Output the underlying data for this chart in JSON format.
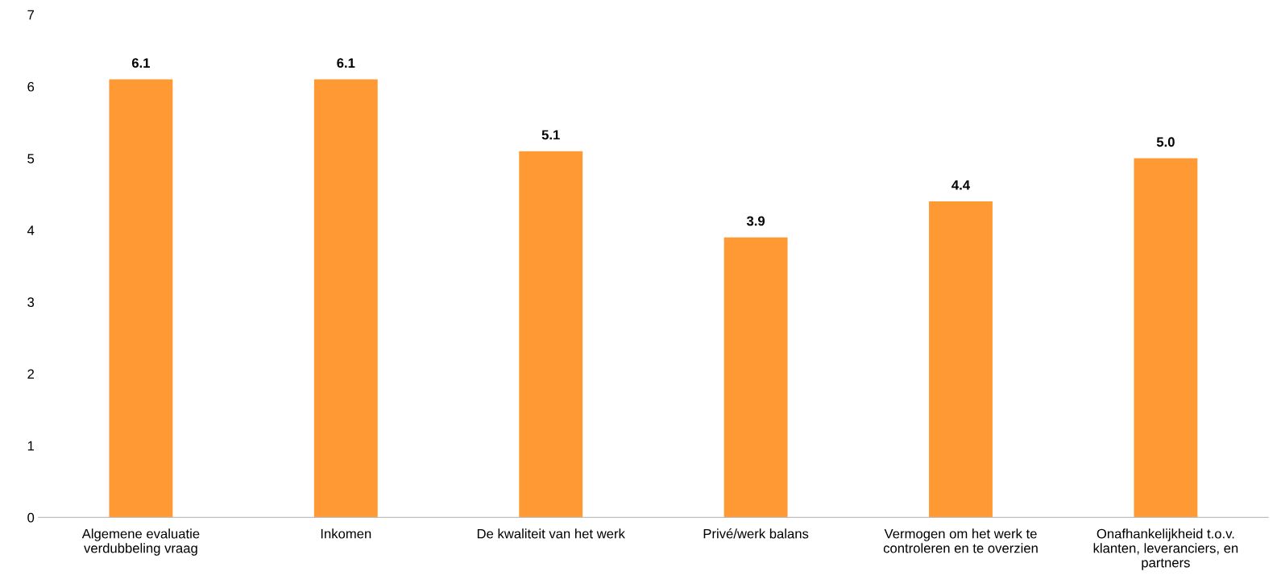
{
  "chart_data": {
    "type": "bar",
    "categories": [
      "Algemene evaluatie\nverdubbeling vraag",
      "Inkomen",
      "De kwaliteit van het werk",
      "Privé/werk balans",
      "Vermogen om het werk te\ncontroleren en te overzien",
      "Onafhankelijkheid t.o.v.\nklanten, leveranciers, en\npartners"
    ],
    "values": [
      6.1,
      6.1,
      5.1,
      3.9,
      4.4,
      5.0
    ],
    "value_labels": [
      "6.1",
      "6.1",
      "5.1",
      "3.9",
      "4.4",
      "5.0"
    ],
    "color": "#ff9933",
    "ylim": [
      0,
      7
    ],
    "yticks": [
      0,
      1,
      2,
      3,
      4,
      5,
      6,
      7
    ],
    "grid": false,
    "legend": false
  }
}
